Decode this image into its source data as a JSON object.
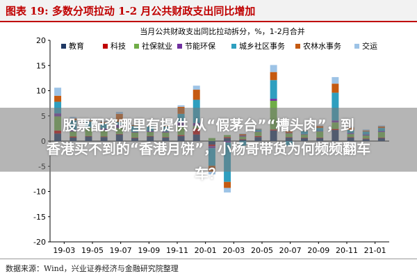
{
  "header": {
    "title": "图表 19:  多数分项拉动 1-2 月公共财政支出同比增加"
  },
  "source": "数据来源：Wind，兴业证券经济与金融研究院整理",
  "overlay": {
    "line1": "股票配资哪里有提供 从“假茅台”“槽头肉”，到",
    "line2": "香港买不到的“香港月饼”，小杨哥带货为何频频翻车",
    "line3": "车？"
  },
  "colors": {
    "header_red": "#c00000",
    "教育": "#1f3864",
    "科技": "#c00000",
    "社保就业": "#70ad47",
    "节能环保": "#7030a0",
    "城乡社区事务": "#2e9fbf",
    "农林水事务": "#c55a11",
    "交运": "#9dc3e6"
  },
  "chart_data": {
    "type": "bar",
    "stacked": true,
    "title": "当月公共财政支出同比拉动拆分，%，1-2月合并",
    "xlabel": "",
    "ylabel": "",
    "ylim": [
      -20,
      20
    ],
    "yticks": [
      -20,
      -15,
      -10,
      -5,
      0,
      5,
      10,
      15,
      20
    ],
    "grid": false,
    "legend_position": "top",
    "x_tick_labels": [
      "19-03",
      "19-05",
      "19-07",
      "19-09",
      "19-11",
      "20-01",
      "20-03",
      "20-05",
      "20-07",
      "20-09",
      "20-11",
      "21-01"
    ],
    "categories": [
      "19-03",
      "19-04",
      "19-05",
      "19-06",
      "19-07",
      "19-08",
      "19-09",
      "19-10",
      "19-11",
      "19-12",
      "20-01",
      "20-03",
      "20-04",
      "20-05",
      "20-06",
      "20-07",
      "20-08",
      "20-09",
      "20-10",
      "20-11",
      "20-12",
      "21-01"
    ],
    "series": [
      {
        "name": "教育",
        "values": [
          1.5,
          0.7,
          0.9,
          0.8,
          1.3,
          0.6,
          0.9,
          0.7,
          1.0,
          1.3,
          -0.7,
          0.6,
          0.3,
          0.8,
          2.1,
          0.7,
          0.6,
          0.6,
          2.2,
          0.7,
          0.4,
          0.6
        ]
      },
      {
        "name": "科技",
        "values": [
          0.6,
          0.2,
          0.1,
          0.1,
          0.1,
          0.1,
          0.1,
          0.1,
          0.2,
          1.2,
          -0.3,
          0.2,
          0.1,
          0.2,
          0.2,
          0.1,
          0.1,
          0.1,
          0.2,
          0.1,
          0.1,
          0.1
        ]
      },
      {
        "name": "社保就业",
        "values": [
          2.8,
          1.0,
          1.6,
          1.2,
          1.2,
          1.0,
          0.8,
          0.9,
          1.8,
          0.5,
          0.6,
          0.4,
          0.5,
          0.8,
          5.7,
          0.7,
          0.6,
          1.2,
          1.3,
          0.6,
          0.6,
          1.1
        ]
      },
      {
        "name": "节能环保",
        "values": [
          0.6,
          0.4,
          0.1,
          0.4,
          0.6,
          0.1,
          0.2,
          0.2,
          0.7,
          0.6,
          -0.4,
          -0.3,
          0.2,
          0.1,
          0.4,
          0.1,
          0.1,
          0.1,
          0.4,
          0.2,
          0.2,
          0.2
        ]
      },
      {
        "name": "城乡社区事务",
        "values": [
          2.3,
          1.8,
          1.2,
          1.0,
          0.6,
          1.2,
          0.9,
          1.0,
          1.7,
          4.6,
          -3.5,
          -7.8,
          -0.9,
          0.4,
          3.7,
          -0.9,
          0.6,
          0.6,
          5.5,
          0.6,
          0.6,
          0.6
        ]
      },
      {
        "name": "农林水事务",
        "values": [
          1.2,
          0.4,
          0.2,
          0.3,
          1.6,
          0.2,
          0.2,
          0.3,
          1.4,
          2.0,
          -1.2,
          -1.2,
          0.3,
          0.1,
          1.6,
          0.4,
          0.1,
          0.4,
          1.8,
          0.5,
          0.2,
          0.3
        ]
      },
      {
        "name": "交运",
        "values": [
          1.6,
          0.3,
          0.1,
          0.2,
          0.4,
          0.1,
          0.1,
          0.2,
          0.3,
          0.8,
          -0.5,
          -0.9,
          0.1,
          0.1,
          1.4,
          0.2,
          0.1,
          0.1,
          1.3,
          0.2,
          0.2,
          0.2
        ]
      }
    ]
  }
}
